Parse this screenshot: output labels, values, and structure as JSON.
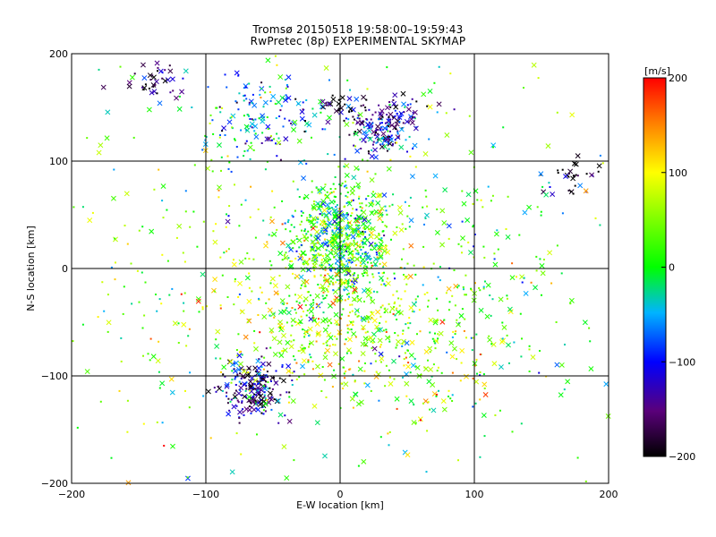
{
  "chart_data": {
    "type": "scatter",
    "title": "Tromsø 20150518 19:58:00–19:59:43",
    "subtitle": "RwPretec (8p) EXPERIMENTAL SKYMAP",
    "xlabel": "E-W location [km]",
    "ylabel": "N-S location [km]",
    "xlim": [
      -200,
      200
    ],
    "ylim": [
      -200,
      200
    ],
    "xticks": [
      -200,
      -100,
      0,
      100,
      200
    ],
    "yticks": [
      -200,
      -100,
      0,
      100,
      200
    ],
    "grid": true,
    "colorbar": {
      "label": "[m/s]",
      "range": [
        -200,
        200
      ],
      "ticks": [
        200,
        100,
        0,
        -100,
        -200
      ],
      "colormap": "rainbow: black-purple-blue-cyan-green-yellow-orange-red",
      "placement": "right"
    },
    "markers": [
      "cross",
      "dot"
    ],
    "clusters": [
      {
        "x": 0,
        "y": 30,
        "spread": [
          20,
          28
        ],
        "v": 10,
        "n": 650
      },
      {
        "x": 0,
        "y": -45,
        "spread": [
          35,
          40
        ],
        "v": 60,
        "n": 450
      },
      {
        "x": -65,
        "y": -112,
        "spread": [
          13,
          14
        ],
        "v": -130,
        "n": 220
      },
      {
        "x": 32,
        "y": 128,
        "spread": [
          13,
          11
        ],
        "v": -120,
        "n": 170
      },
      {
        "x": -60,
        "y": 140,
        "spread": [
          28,
          20
        ],
        "v": -60,
        "n": 160
      },
      {
        "x": 20,
        "y": 150,
        "spread": [
          25,
          7
        ],
        "v": -170,
        "n": 60
      },
      {
        "x": -140,
        "y": 175,
        "spread": [
          14,
          10
        ],
        "v": -160,
        "n": 40
      },
      {
        "x": 70,
        "y": -75,
        "spread": [
          30,
          40
        ],
        "v": 40,
        "n": 150
      },
      {
        "x": 175,
        "y": 85,
        "spread": [
          12,
          10
        ],
        "v": -185,
        "n": 35
      },
      {
        "x": 100,
        "y": 0,
        "spread": [
          35,
          50
        ],
        "v": 20,
        "n": 110
      },
      {
        "x": -110,
        "y": 0,
        "spread": [
          50,
          80
        ],
        "v": 50,
        "n": 160
      },
      {
        "x": 0,
        "y": 0,
        "spread": [
          130,
          130
        ],
        "v": 30,
        "n": 320
      }
    ]
  }
}
